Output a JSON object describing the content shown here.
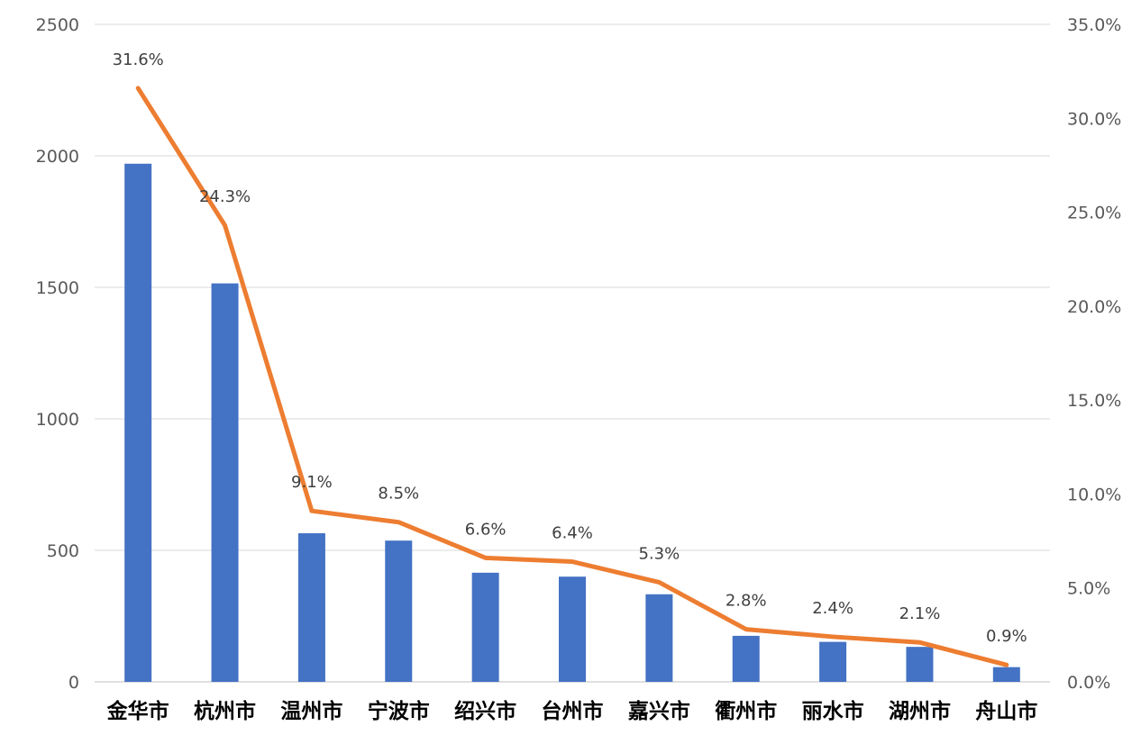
{
  "chart_data": {
    "type": "bar",
    "categories": [
      "金华市",
      "杭州市",
      "温州市",
      "宁波市",
      "绍兴市",
      "台州市",
      "嘉兴市",
      "衢州市",
      "丽水市",
      "湖州市",
      "舟山市"
    ],
    "series": [
      {
        "type": "bar",
        "axis": "left",
        "color": "#4472C4",
        "values": [
          1970,
          1515,
          565,
          537,
          415,
          400,
          333,
          175,
          152,
          133,
          56
        ]
      },
      {
        "type": "line",
        "axis": "right",
        "color": "#ED7D31",
        "values": [
          31.6,
          24.3,
          9.1,
          8.5,
          6.6,
          6.4,
          5.3,
          2.8,
          2.4,
          2.1,
          0.9
        ],
        "data_labels": [
          "31.6%",
          "24.3%",
          "9.1%",
          "8.5%",
          "6.6%",
          "6.4%",
          "5.3%",
          "2.8%",
          "2.4%",
          "2.1%",
          "0.9%"
        ]
      }
    ],
    "title": "",
    "xlabel": "",
    "ylabel": "",
    "ylim": [
      0,
      2500
    ],
    "yticks": [
      "0",
      "500",
      "1000",
      "1500",
      "2000",
      "2500"
    ],
    "y2lim": [
      0,
      35
    ],
    "y2ticks": [
      "0.0%",
      "5.0%",
      "10.0%",
      "15.0%",
      "20.0%",
      "25.0%",
      "30.0%",
      "35.0%"
    ],
    "grid": true,
    "legend": "none"
  }
}
